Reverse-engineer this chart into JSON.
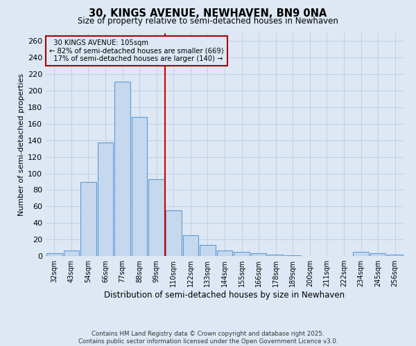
{
  "title": "30, KINGS AVENUE, NEWHAVEN, BN9 0NA",
  "subtitle": "Size of property relative to semi-detached houses in Newhaven",
  "xlabel": "Distribution of semi-detached houses by size in Newhaven",
  "ylabel": "Number of semi-detached properties",
  "categories": [
    "32sqm",
    "43sqm",
    "54sqm",
    "66sqm",
    "77sqm",
    "88sqm",
    "99sqm",
    "110sqm",
    "122sqm",
    "133sqm",
    "144sqm",
    "155sqm",
    "166sqm",
    "178sqm",
    "189sqm",
    "200sqm",
    "211sqm",
    "222sqm",
    "234sqm",
    "245sqm",
    "256sqm"
  ],
  "values": [
    3,
    7,
    90,
    137,
    211,
    168,
    93,
    55,
    25,
    13,
    7,
    5,
    3,
    2,
    1,
    0,
    0,
    0,
    5,
    3,
    2
  ],
  "bar_color": "#c5d8ee",
  "bar_edge_color": "#5b9bd5",
  "property_label": "30 KINGS AVENUE: 105sqm",
  "pct_smaller": 82,
  "n_smaller": 669,
  "pct_larger": 17,
  "n_larger": 140,
  "vline_color": "#cc0000",
  "annotation_box_color": "#aa0000",
  "background_color": "#dde8f4",
  "grid_color": "#b8cce0",
  "ylim": [
    0,
    270
  ],
  "yticks": [
    0,
    20,
    40,
    60,
    80,
    100,
    120,
    140,
    160,
    180,
    200,
    220,
    240,
    260
  ],
  "footer_line1": "Contains HM Land Registry data © Crown copyright and database right 2025.",
  "footer_line2": "Contains public sector information licensed under the Open Government Licence v3.0."
}
